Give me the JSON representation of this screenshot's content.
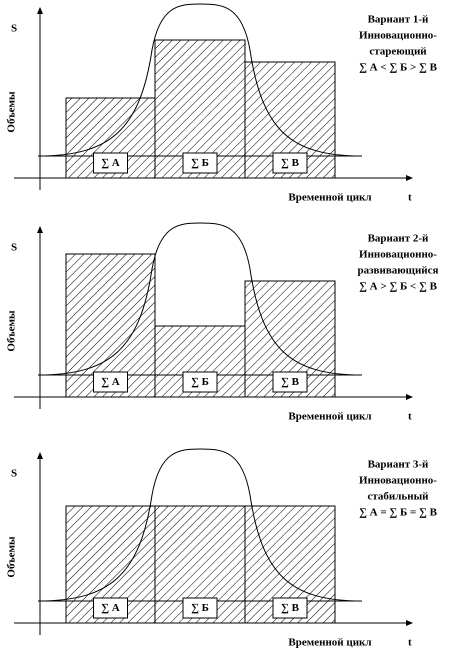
{
  "panels": [
    {
      "s": "S",
      "y_label": "Объемы",
      "x_label": "Временной цикл",
      "t": "t",
      "caption": [
        "Вариант 1-й",
        "Инновационно-",
        "стареющий",
        "∑ А < ∑ Б > ∑ В"
      ],
      "boxes": [
        "∑ А",
        "∑ Б",
        "∑ В"
      ]
    },
    {
      "s": "S",
      "y_label": "Объемы",
      "x_label": "Временной цикл",
      "t": "t",
      "caption": [
        "Вариант 2-й",
        "Инновационно-",
        "развивающийся",
        "∑ А > ∑ Б < ∑ В"
      ],
      "boxes": [
        "∑ А",
        "∑ Б",
        "∑ В"
      ]
    },
    {
      "s": "S",
      "y_label": "Объемы",
      "x_label": "Временной цикл",
      "t": "t",
      "caption": [
        "Вариант 3-й",
        "Инновационно-",
        "стабильный",
        "∑ А = ∑ Б = ∑ В"
      ],
      "boxes": [
        "∑ А",
        "∑ Б",
        "∑ В"
      ]
    }
  ]
}
